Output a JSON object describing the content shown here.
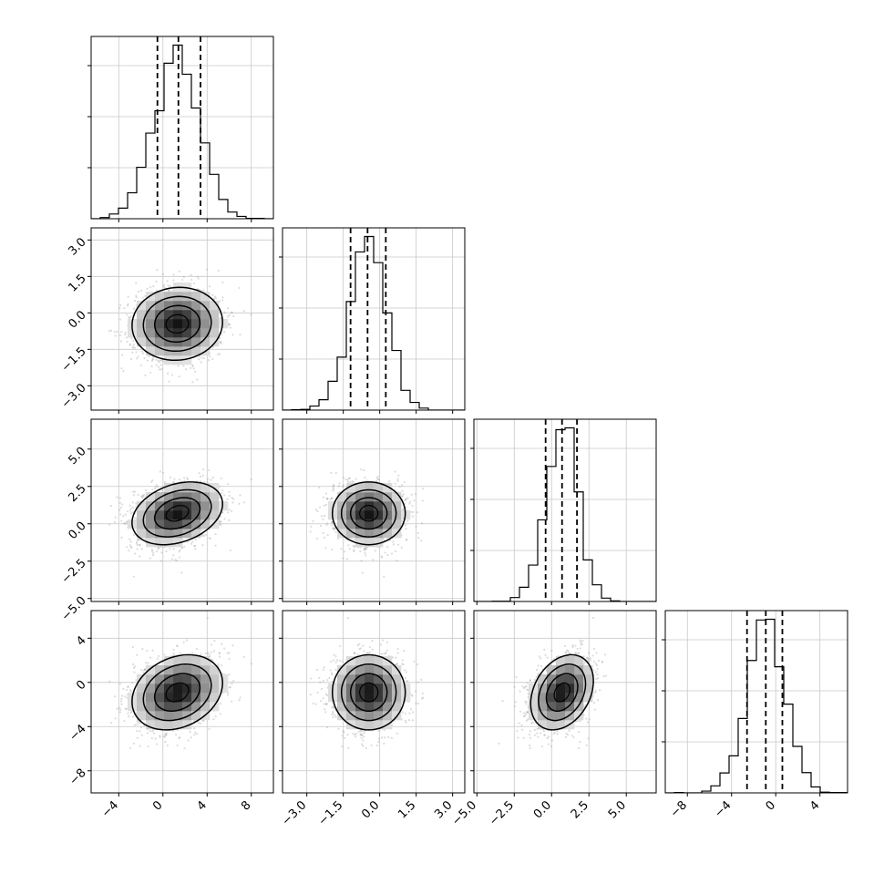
{
  "chart_data": {
    "type": "corner",
    "title": "",
    "grid": true,
    "n_params": 4,
    "params": [
      {
        "label": "",
        "range": [
          -6.5,
          10.0
        ],
        "ticks": [
          -4,
          0,
          4,
          8
        ],
        "tick_labels": [
          "−4",
          "0",
          "4",
          "8"
        ],
        "mean": 1.3,
        "std": 2.05,
        "quantiles": [
          -0.5,
          1.4,
          3.4
        ]
      },
      {
        "label": "",
        "range": [
          -4.0,
          3.5
        ],
        "ticks": [
          -3.0,
          -1.5,
          0.0,
          1.5,
          3.0
        ],
        "tick_labels": [
          "−3.0",
          "−1.5",
          "0.0",
          "1.5",
          "3.0"
        ],
        "mean": -0.45,
        "std": 0.75,
        "quantiles": [
          -1.2,
          -0.5,
          0.25
        ]
      },
      {
        "label": "",
        "range": [
          -5.2,
          7.0
        ],
        "ticks": [
          -5.0,
          -2.5,
          0.0,
          2.5,
          5.0
        ],
        "tick_labels": [
          "−5.0",
          "−2.5",
          "0.0",
          "2.5",
          "5.0"
        ],
        "mean": 0.7,
        "std": 1.05,
        "quantiles": [
          -0.4,
          0.7,
          1.7
        ]
      },
      {
        "label": "",
        "range": [
          -10.0,
          6.5
        ],
        "ticks": [
          -8,
          -4,
          0,
          4
        ],
        "tick_labels": [
          "−8",
          "−4",
          "0",
          "4"
        ],
        "mean": -0.9,
        "std": 1.7,
        "quantiles": [
          -2.6,
          -0.9,
          0.6
        ]
      }
    ],
    "correlations": [
      [
        1.0,
        0.05,
        0.3,
        0.25
      ],
      [
        0.05,
        1.0,
        0.0,
        0.0
      ],
      [
        0.3,
        0.0,
        1.0,
        0.3
      ],
      [
        0.25,
        0.0,
        0.3,
        1.0
      ]
    ],
    "histogram_style": "step",
    "quantile_lines": "dashed",
    "contour_levels": 3
  }
}
